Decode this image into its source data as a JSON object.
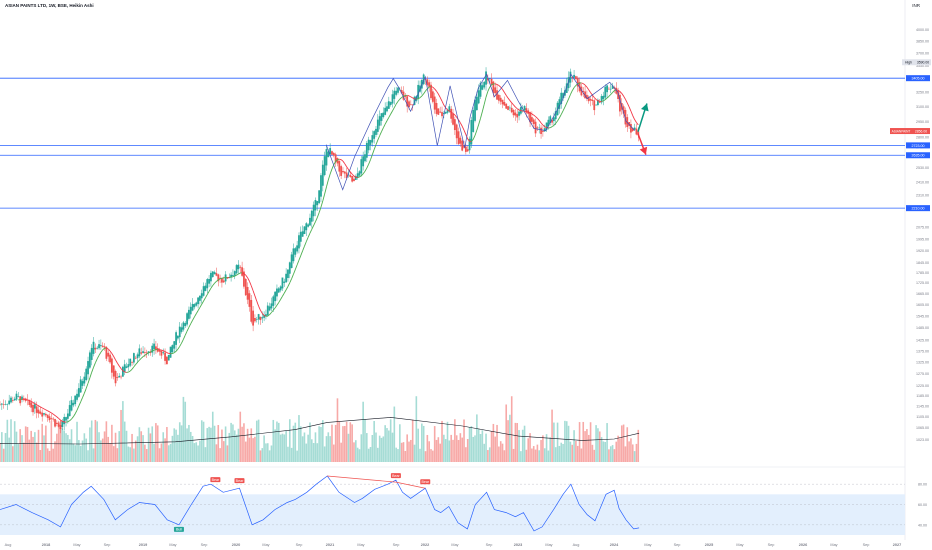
{
  "header": {
    "title": "ASIAN PAINTS LTD, 1W, BSE, Heikin Ashi",
    "currency": "INR"
  },
  "colors": {
    "up": "#26a69a",
    "down": "#ef5350",
    "support_line": "#2962ff",
    "rsi_line": "#2962ff",
    "rsi_band": "#e3effd",
    "ma_up": "#4caf50",
    "ma_down": "#f23645",
    "volume_ma": "#131722",
    "green_arrow": "#089981",
    "red_arrow": "#f23645"
  },
  "chart_data": {
    "type": "candlestick",
    "price_axis": {
      "scale": "log",
      "range": [
        950,
        4300
      ],
      "ticks": [
        "4000.00",
        "3850.00",
        "3700.00",
        "3550.00",
        "3400.00",
        "3250.00",
        "3100.00",
        "2950.00",
        "2800.00",
        "2710.00",
        "2530.00",
        "2410.00",
        "2310.00",
        "2210.00",
        "2075.00",
        "1995.00",
        "1920.00",
        "1845.00",
        "1785.00",
        "1725.00",
        "1665.00",
        "1605.00",
        "1545.00",
        "1485.00",
        "1425.00",
        "1375.00",
        "1325.00",
        "1275.00",
        "1225.00",
        "1185.00",
        "1145.00",
        "1105.00",
        "1065.00",
        "1023.00"
      ]
    },
    "x_axis": {
      "range": [
        "2017-08-01",
        "2027-01-15"
      ],
      "ticks": [
        "Aug",
        "2018",
        "May",
        "Sep",
        "2019",
        "May",
        "Sep",
        "2020",
        "May",
        "Sep",
        "2021",
        "May",
        "Sep",
        "2022",
        "May",
        "Sep",
        "2023",
        "May",
        "Aug",
        "2024",
        "May",
        "Sep",
        "2025",
        "May",
        "Sep",
        "2026",
        "May",
        "Sep",
        "2027"
      ]
    },
    "horizontal_levels": [
      {
        "value": 3405.0,
        "label": "3405.00"
      },
      {
        "value": 2723.0,
        "label": "2723.00"
      },
      {
        "value": 2635.0,
        "label": "2635.00"
      },
      {
        "value": 2210.0,
        "label": "2210.00"
      }
    ],
    "price_badges": [
      {
        "tag": "High",
        "value": "3590.00"
      },
      {
        "tag": "ASIANPAINT",
        "value": "2856.00"
      }
    ],
    "close_points": [
      [
        "2017-08-01",
        1150
      ],
      [
        "2017-10-01",
        1180
      ],
      [
        "2017-12-01",
        1140
      ],
      [
        "2018-02-01",
        1110
      ],
      [
        "2018-03-20",
        1060
      ],
      [
        "2018-05-01",
        1150
      ],
      [
        "2018-06-15",
        1260
      ],
      [
        "2018-07-15",
        1400
      ],
      [
        "2018-09-01",
        1390
      ],
      [
        "2018-10-15",
        1240
      ],
      [
        "2018-12-01",
        1320
      ],
      [
        "2019-01-15",
        1370
      ],
      [
        "2019-03-15",
        1390
      ],
      [
        "2019-05-01",
        1330
      ],
      [
        "2019-06-15",
        1480
      ],
      [
        "2019-08-01",
        1580
      ],
      [
        "2019-09-15",
        1700
      ],
      [
        "2019-10-15",
        1770
      ],
      [
        "2019-12-01",
        1740
      ],
      [
        "2020-02-01",
        1820
      ],
      [
        "2020-03-20",
        1510
      ],
      [
        "2020-05-01",
        1550
      ],
      [
        "2020-06-15",
        1650
      ],
      [
        "2020-08-01",
        1780
      ],
      [
        "2020-09-01",
        1950
      ],
      [
        "2020-10-15",
        2100
      ],
      [
        "2020-11-20",
        2250
      ],
      [
        "2021-01-01",
        2720
      ],
      [
        "2021-02-15",
        2500
      ],
      [
        "2021-04-15",
        2400
      ],
      [
        "2021-05-15",
        2600
      ],
      [
        "2021-07-01",
        2900
      ],
      [
        "2021-08-20",
        3100
      ],
      [
        "2021-09-20",
        3300
      ],
      [
        "2021-10-15",
        3200
      ],
      [
        "2021-11-15",
        3100
      ],
      [
        "2022-01-10",
        3450
      ],
      [
        "2022-02-15",
        3050
      ],
      [
        "2022-03-10",
        3000
      ],
      [
        "2022-04-10",
        3100
      ],
      [
        "2022-05-15",
        2750
      ],
      [
        "2022-06-20",
        2650
      ],
      [
        "2022-07-20",
        3200
      ],
      [
        "2022-09-01",
        3450
      ],
      [
        "2022-10-01",
        3250
      ],
      [
        "2022-11-15",
        3100
      ],
      [
        "2022-12-20",
        3000
      ],
      [
        "2023-01-20",
        3100
      ],
      [
        "2023-03-01",
        2880
      ],
      [
        "2023-04-01",
        2850
      ],
      [
        "2023-05-15",
        3000
      ],
      [
        "2023-06-20",
        3250
      ],
      [
        "2023-07-20",
        3450
      ],
      [
        "2023-08-20",
        3300
      ],
      [
        "2023-09-20",
        3150
      ],
      [
        "2023-10-20",
        3100
      ],
      [
        "2023-12-01",
        3300
      ],
      [
        "2024-01-01",
        3330
      ],
      [
        "2024-01-20",
        3100
      ],
      [
        "2024-02-15",
        2950
      ],
      [
        "2024-03-15",
        2850
      ],
      [
        "2024-04-05",
        2856
      ]
    ],
    "swing_path": [
      [
        "2020-12-28",
        2730
      ],
      [
        "2021-03-01",
        2350
      ],
      [
        "2021-04-15",
        2620
      ],
      [
        "2021-06-15",
        2940
      ],
      [
        "2021-08-20",
        3300
      ],
      [
        "2021-09-10",
        3400
      ],
      [
        "2021-10-01",
        3300
      ],
      [
        "2021-11-15",
        3050
      ],
      [
        "2022-01-10",
        3420
      ],
      [
        "2022-02-25",
        2720
      ],
      [
        "2022-04-15",
        3320
      ],
      [
        "2022-06-10",
        2700
      ],
      [
        "2022-07-01",
        3000
      ],
      [
        "2022-08-01",
        3300
      ],
      [
        "2022-09-01",
        3450
      ],
      [
        "2022-10-01",
        3200
      ],
      [
        "2022-11-20",
        3380
      ],
      [
        "2023-01-01",
        3150
      ],
      [
        "2023-03-01",
        2880
      ],
      [
        "2023-04-15",
        2860
      ],
      [
        "2023-06-15",
        3150
      ],
      [
        "2023-07-20",
        3450
      ],
      [
        "2023-09-20",
        3180
      ],
      [
        "2023-12-15",
        3360
      ],
      [
        "2024-01-15",
        3250
      ],
      [
        "2024-02-15",
        2950
      ],
      [
        "2024-03-20",
        2860
      ]
    ],
    "projection_arrows": [
      {
        "direction": "up",
        "from": [
          "2024-04-01",
          2850
        ],
        "to": [
          "2024-05-05",
          3130
        ]
      },
      {
        "direction": "down",
        "from": [
          "2024-04-01",
          2830
        ],
        "to": [
          "2024-05-01",
          2640
        ]
      }
    ],
    "volume_ma_points": [
      [
        "2017-08-01",
        0.26
      ],
      [
        "2018-06-01",
        0.25
      ],
      [
        "2019-06-01",
        0.28
      ],
      [
        "2020-01-01",
        0.35
      ],
      [
        "2020-09-01",
        0.45
      ],
      [
        "2021-01-01",
        0.55
      ],
      [
        "2021-09-01",
        0.62
      ],
      [
        "2022-06-01",
        0.5
      ],
      [
        "2023-01-01",
        0.36
      ],
      [
        "2023-09-01",
        0.3
      ],
      [
        "2024-01-01",
        0.32
      ],
      [
        "2024-04-05",
        0.4
      ]
    ],
    "rsi": {
      "range": [
        30,
        90
      ],
      "ticks": [
        "80.00",
        "60.00",
        "40.00"
      ],
      "band": [
        30,
        70
      ],
      "series": [
        [
          "2017-08-01",
          55
        ],
        [
          "2017-10-01",
          60
        ],
        [
          "2017-12-01",
          52
        ],
        [
          "2018-02-01",
          45
        ],
        [
          "2018-03-20",
          38
        ],
        [
          "2018-05-01",
          60
        ],
        [
          "2018-06-15",
          72
        ],
        [
          "2018-07-15",
          78
        ],
        [
          "2018-09-01",
          65
        ],
        [
          "2018-10-15",
          45
        ],
        [
          "2018-12-01",
          55
        ],
        [
          "2019-01-15",
          62
        ],
        [
          "2019-03-15",
          60
        ],
        [
          "2019-05-01",
          45
        ],
        [
          "2019-06-15",
          40
        ],
        [
          "2019-08-01",
          60
        ],
        [
          "2019-09-15",
          78
        ],
        [
          "2019-10-15",
          80
        ],
        [
          "2019-12-01",
          72
        ],
        [
          "2020-02-01",
          76
        ],
        [
          "2020-03-20",
          40
        ],
        [
          "2020-05-01",
          45
        ],
        [
          "2020-06-15",
          55
        ],
        [
          "2020-08-01",
          62
        ],
        [
          "2020-09-01",
          65
        ],
        [
          "2020-10-15",
          72
        ],
        [
          "2020-11-20",
          80
        ],
        [
          "2021-01-01",
          88
        ],
        [
          "2021-02-15",
          72
        ],
        [
          "2021-04-15",
          62
        ],
        [
          "2021-05-15",
          66
        ],
        [
          "2021-07-01",
          75
        ],
        [
          "2021-08-20",
          80
        ],
        [
          "2021-09-20",
          84
        ],
        [
          "2021-10-15",
          72
        ],
        [
          "2021-11-15",
          66
        ],
        [
          "2022-01-10",
          76
        ],
        [
          "2022-02-15",
          55
        ],
        [
          "2022-03-10",
          52
        ],
        [
          "2022-04-10",
          58
        ],
        [
          "2022-05-15",
          42
        ],
        [
          "2022-06-20",
          36
        ],
        [
          "2022-07-20",
          60
        ],
        [
          "2022-09-01",
          72
        ],
        [
          "2022-10-01",
          55
        ],
        [
          "2022-11-15",
          52
        ],
        [
          "2022-12-20",
          48
        ],
        [
          "2023-01-20",
          52
        ],
        [
          "2023-03-01",
          34
        ],
        [
          "2023-04-01",
          38
        ],
        [
          "2023-05-15",
          55
        ],
        [
          "2023-06-20",
          70
        ],
        [
          "2023-07-20",
          80
        ],
        [
          "2023-08-20",
          60
        ],
        [
          "2023-09-20",
          50
        ],
        [
          "2023-10-20",
          44
        ],
        [
          "2023-12-01",
          70
        ],
        [
          "2024-01-01",
          74
        ],
        [
          "2024-01-20",
          56
        ],
        [
          "2024-02-15",
          45
        ],
        [
          "2024-03-15",
          36
        ],
        [
          "2024-04-05",
          37
        ]
      ],
      "divergence_lines": [
        {
          "from": [
            "2021-01-01",
            88
          ],
          "to": [
            "2021-09-20",
            82
          ]
        },
        {
          "from": [
            "2021-09-20",
            82
          ],
          "to": [
            "2022-01-10",
            76
          ]
        }
      ],
      "labels": [
        {
          "text": "Bear",
          "at": [
            "2019-11-01",
            80
          ],
          "kind": "bear"
        },
        {
          "text": "Bear",
          "at": [
            "2020-02-01",
            79
          ],
          "kind": "bear"
        },
        {
          "text": "Bear",
          "at": [
            "2021-09-20",
            84
          ],
          "kind": "bear"
        },
        {
          "text": "Bear",
          "at": [
            "2022-01-10",
            78
          ],
          "kind": "bear"
        },
        {
          "text": "Bull",
          "at": [
            "2019-06-15",
            39
          ],
          "kind": "bull"
        }
      ]
    }
  }
}
